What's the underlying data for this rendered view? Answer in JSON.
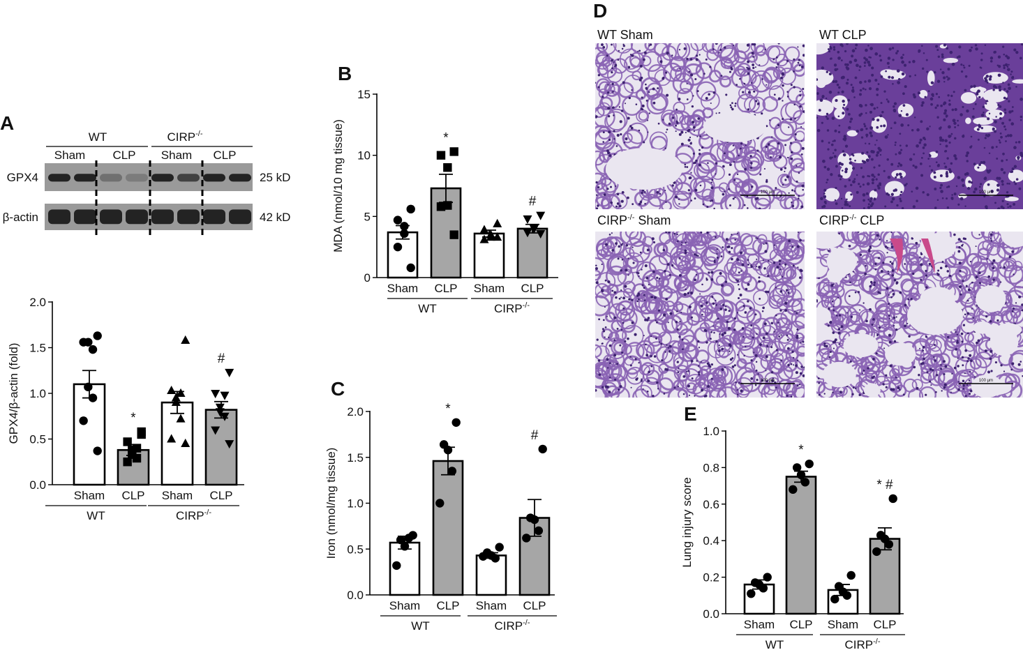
{
  "panels": {
    "A": "A",
    "B": "B",
    "C": "C",
    "D": "D",
    "E": "E"
  },
  "blot": {
    "groups": [
      {
        "label": "WT"
      },
      {
        "label": "CIRP",
        "sup": "-/-"
      }
    ],
    "lanes": [
      "Sham",
      "CLP",
      "Sham",
      "CLP"
    ],
    "rows": [
      {
        "label": "GPX4",
        "size": "25 kD"
      },
      {
        "label": "β-actin",
        "size": "42 kD"
      }
    ],
    "colors": {
      "band": "#232323",
      "membrane": "#9a9a9a"
    }
  },
  "histology": {
    "panels": [
      {
        "label": "WT Sham",
        "sup": "",
        "suffix": ""
      },
      {
        "label": "WT CLP",
        "sup": "",
        "suffix": ""
      },
      {
        "label": "CIRP",
        "sup": "-/-",
        "suffix": " Sham"
      },
      {
        "label": "CIRP",
        "sup": "-/-",
        "suffix": " CLP"
      }
    ],
    "scalebar": "100 μm",
    "colors": {
      "background": "#eae6f0",
      "tissue": "#8a63b4",
      "dense": "#6a3f9a",
      "nuclei": "#3d2270",
      "blood": "#c94a8a"
    }
  },
  "chart_data": [
    {
      "type": "bar",
      "panel": "A",
      "ylabel": "GPX4/β-actin (fold)",
      "ylim": [
        0,
        2.0
      ],
      "yticks": [
        "0.0",
        "0.5",
        "1.0",
        "1.5",
        "2.0"
      ],
      "categories": [
        "Sham",
        "CLP",
        "Sham",
        "CLP"
      ],
      "groups": [
        {
          "label": "WT",
          "sup": ""
        },
        {
          "label": "CIRP",
          "sup": "-/-"
        }
      ],
      "values": [
        1.1,
        0.38,
        0.9,
        0.82
      ],
      "errors": [
        0.15,
        0.06,
        0.12,
        0.09
      ],
      "markers": [
        "circle",
        "square",
        "triangle",
        "triangle-down"
      ],
      "fills": [
        "#ffffff",
        "#a6a6a6",
        "#ffffff",
        "#a6a6a6"
      ],
      "annotations": [
        "",
        "*",
        "",
        "#"
      ],
      "points": [
        [
          1.63,
          1.56,
          1.48,
          1.56,
          1.07,
          0.95,
          0.7,
          0.37
        ],
        [
          0.58,
          0.47,
          0.4,
          0.38,
          0.33,
          0.29,
          0.25,
          0.55
        ],
        [
          1.58,
          1.03,
          1.0,
          0.95,
          0.9,
          0.72,
          0.5,
          0.45
        ],
        [
          1.23,
          1.0,
          0.98,
          0.85,
          0.8,
          0.75,
          0.6,
          0.45
        ]
      ]
    },
    {
      "type": "bar",
      "panel": "B",
      "ylabel": "MDA (nmol/10 mg tissue)",
      "ylim": [
        0,
        15
      ],
      "yticks": [
        "0",
        "5",
        "10",
        "15"
      ],
      "categories": [
        "Sham",
        "CLP",
        "Sham",
        "CLP"
      ],
      "groups": [
        {
          "label": "WT",
          "sup": ""
        },
        {
          "label": "CIRP",
          "sup": "-/-"
        }
      ],
      "values": [
        3.7,
        7.3,
        3.6,
        4.0
      ],
      "errors": [
        0.55,
        1.15,
        0.28,
        0.35
      ],
      "markers": [
        "circle",
        "square",
        "triangle",
        "triangle-down"
      ],
      "fills": [
        "#ffffff",
        "#a6a6a6",
        "#ffffff",
        "#a6a6a6"
      ],
      "annotations": [
        "",
        "*",
        "",
        "#"
      ],
      "points": [
        [
          5.6,
          4.7,
          4.2,
          3.6,
          2.5,
          0.8
        ],
        [
          10.3,
          10.0,
          9.0,
          5.9,
          5.8,
          3.5
        ],
        [
          4.4,
          3.9,
          3.5,
          3.3,
          3.1,
          3.3
        ],
        [
          5.1,
          4.8,
          4.1,
          4.0,
          3.7,
          3.6
        ]
      ]
    },
    {
      "type": "bar",
      "panel": "C",
      "ylabel": "Iron (nmol/mg tissue)",
      "ylim": [
        0,
        2.0
      ],
      "yticks": [
        "0.0",
        "0.5",
        "1.0",
        "1.5",
        "2.0"
      ],
      "categories": [
        "Sham",
        "CLP",
        "Sham",
        "CLP"
      ],
      "groups": [
        {
          "label": "WT",
          "sup": ""
        },
        {
          "label": "CIRP",
          "sup": "-/-"
        }
      ],
      "values": [
        0.57,
        1.46,
        0.43,
        0.84
      ],
      "errors": [
        0.07,
        0.15,
        0.03,
        0.2
      ],
      "markers": [
        "circle",
        "circle",
        "circle",
        "circle"
      ],
      "fills": [
        "#ffffff",
        "#a6a6a6",
        "#ffffff",
        "#a6a6a6"
      ],
      "annotations": [
        "",
        "*",
        "",
        "#"
      ],
      "points": [
        [
          0.65,
          0.6,
          0.53,
          0.62,
          0.32
        ],
        [
          1.88,
          1.64,
          1.58,
          1.35,
          1.0
        ],
        [
          0.52,
          0.46,
          0.43,
          0.4,
          0.42
        ],
        [
          1.59,
          0.84,
          0.82,
          0.7,
          0.62
        ]
      ]
    },
    {
      "type": "bar",
      "panel": "E",
      "ylabel": "Lung injury score",
      "ylim": [
        0,
        1.0
      ],
      "yticks": [
        "0.0",
        "0.2",
        "0.4",
        "0.6",
        "0.8",
        "1.0"
      ],
      "categories": [
        "Sham",
        "CLP",
        "Sham",
        "CLP"
      ],
      "groups": [
        {
          "label": "WT",
          "sup": ""
        },
        {
          "label": "CIRP",
          "sup": "-/-"
        }
      ],
      "values": [
        0.16,
        0.75,
        0.13,
        0.41
      ],
      "errors": [
        0.025,
        0.03,
        0.03,
        0.06
      ],
      "markers": [
        "circle",
        "circle",
        "circle",
        "circle"
      ],
      "fills": [
        "#ffffff",
        "#a6a6a6",
        "#ffffff",
        "#a6a6a6"
      ],
      "annotations": [
        "",
        "*",
        "",
        "* #"
      ],
      "points": [
        [
          0.2,
          0.17,
          0.16,
          0.14,
          0.11
        ],
        [
          0.82,
          0.8,
          0.76,
          0.72,
          0.68
        ],
        [
          0.21,
          0.15,
          0.12,
          0.1,
          0.08
        ],
        [
          0.63,
          0.43,
          0.41,
          0.38,
          0.34
        ]
      ]
    }
  ]
}
